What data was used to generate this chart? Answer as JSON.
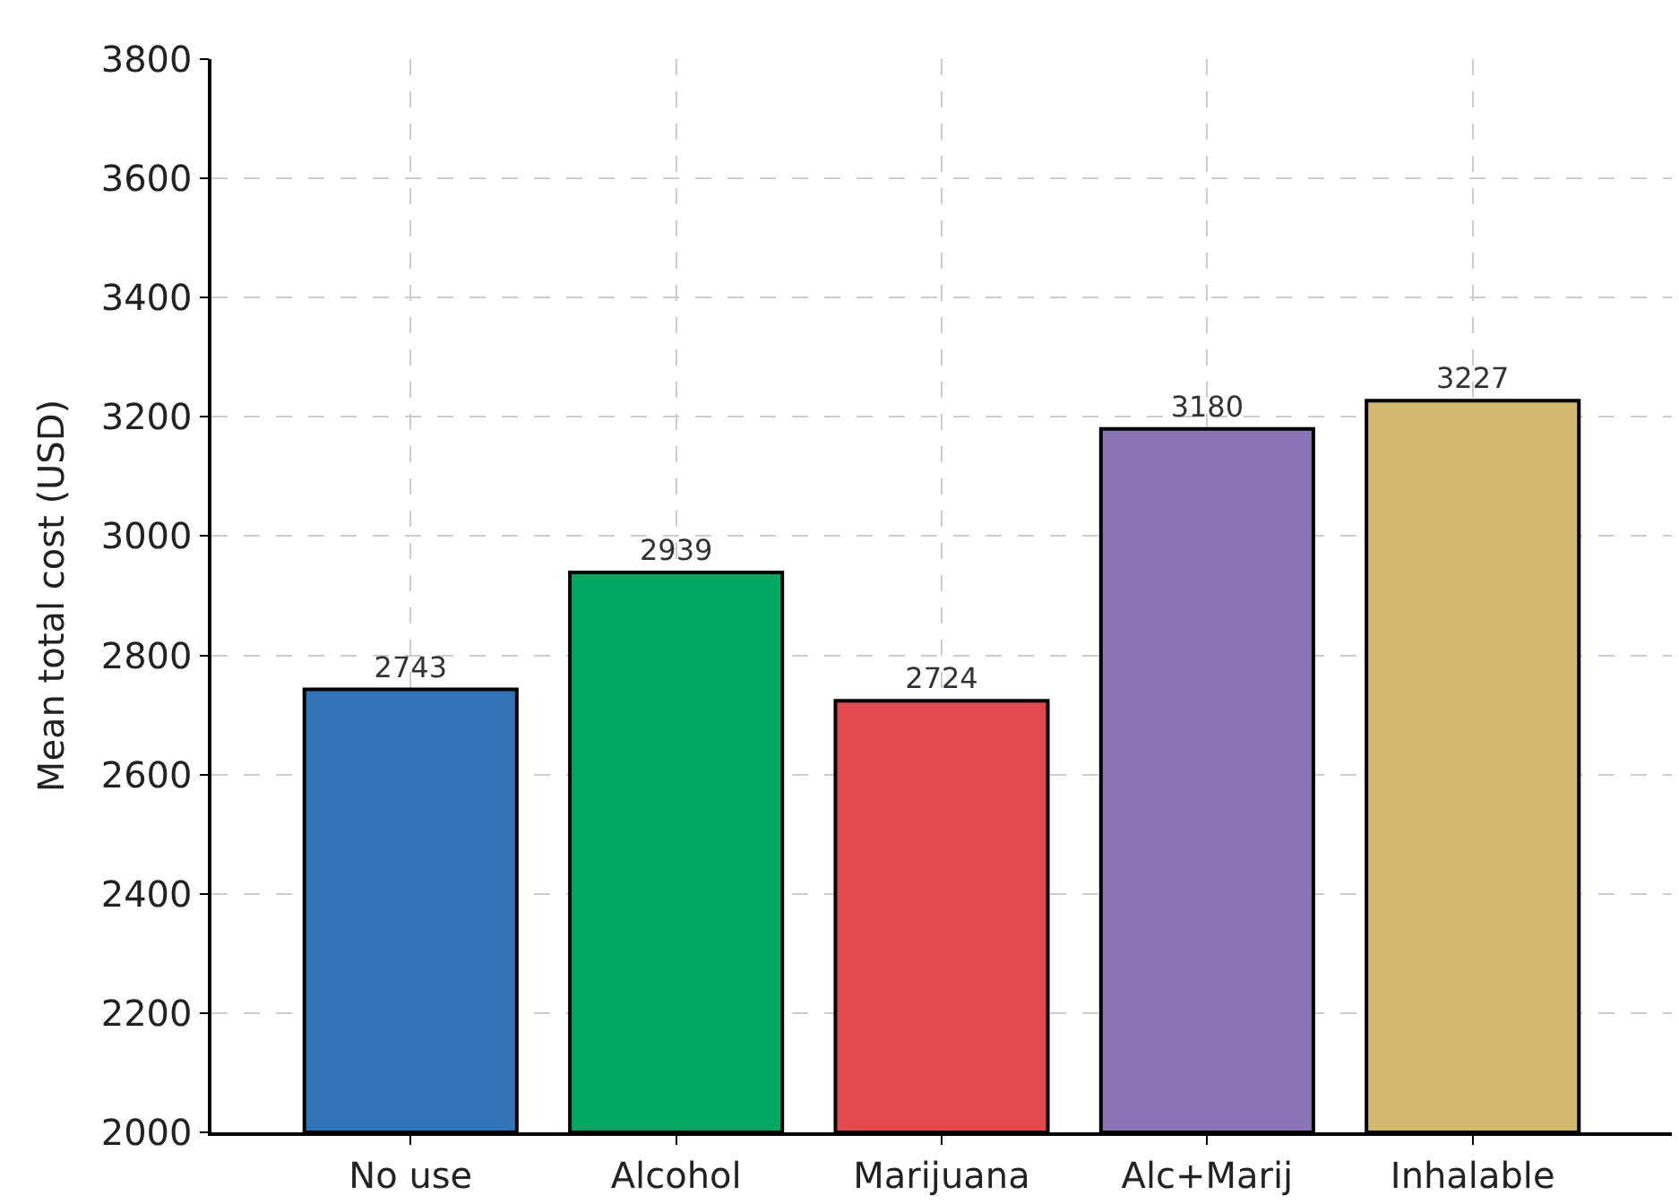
{
  "chart_data": {
    "type": "bar",
    "ylabel": "Mean total cost (USD)",
    "categories": [
      "No use",
      "Alcohol",
      "Marijuana",
      "Alc+Marij",
      "Inhalable"
    ],
    "values": [
      2743,
      2939,
      2724,
      3180,
      3227
    ],
    "colors": [
      "#3274b5",
      "#00a862",
      "#e24a50",
      "#8a74b5",
      "#d3b870"
    ],
    "ylim": [
      2000,
      3800
    ],
    "yticks": [
      2000,
      2200,
      2400,
      2600,
      2800,
      3000,
      3200,
      3400,
      3600,
      3800
    ],
    "grid": true,
    "data_labels": true
  }
}
